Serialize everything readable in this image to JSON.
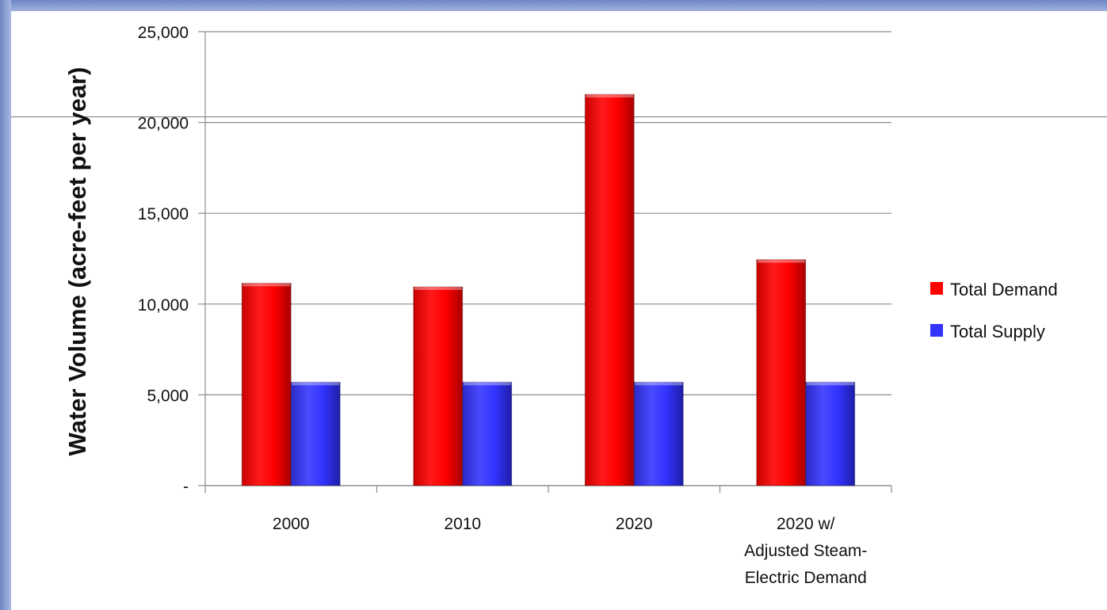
{
  "colors": {
    "total_demand": "#ff0000",
    "total_supply": "#3333ff",
    "gridline": "#8c8c8c",
    "background_strip": "#7f93cd"
  },
  "chart_data": {
    "type": "bar",
    "categories": [
      [
        "2000"
      ],
      [
        "2010"
      ],
      [
        "2020"
      ],
      [
        "2020 w/",
        "Adjusted Steam-",
        "Electric Demand"
      ]
    ],
    "series": [
      {
        "name": "Total Demand",
        "values": [
          11150,
          10950,
          21550,
          12450
        ],
        "color": "#ff0000"
      },
      {
        "name": "Total Supply",
        "values": [
          5700,
          5700,
          5700,
          5700
        ],
        "color": "#3333ff"
      }
    ],
    "ylabel": "Water Volume (acre-feet per year)",
    "xlabel": "",
    "ylim": [
      0,
      25000
    ],
    "yticks": [
      {
        "value": 0,
        "label": "-"
      },
      {
        "value": 5000,
        "label": "5,000"
      },
      {
        "value": 10000,
        "label": "10,000"
      },
      {
        "value": 15000,
        "label": "15,000"
      },
      {
        "value": 20000,
        "label": "20,000"
      },
      {
        "value": 25000,
        "label": "25,000"
      }
    ],
    "grid": true,
    "legend_position": "right"
  }
}
